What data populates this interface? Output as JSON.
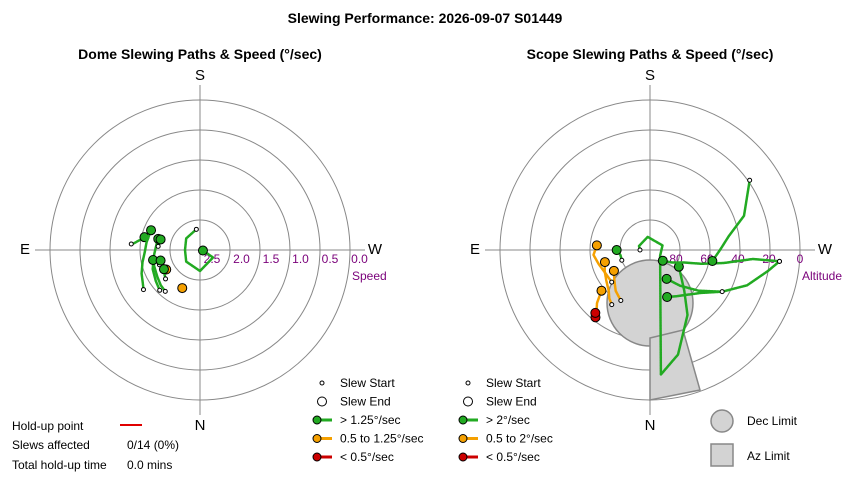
{
  "title": "Slewing Performance: 2026-09-07 S01449",
  "colors": {
    "fast": "#22aa22",
    "medium": "#f5a000",
    "slow": "#cc0000",
    "grid": "#888888",
    "limit_fill": "#d3d3d3",
    "limit_stroke": "#888888",
    "axis_label": "#7a007a"
  },
  "chart_data": [
    {
      "type": "polar-path",
      "title": "Dome Slewing Paths & Speed (°/sec)",
      "compass": [
        "S",
        "W",
        "N",
        "E"
      ],
      "radial_axis": {
        "name": "Speed",
        "ticks": [
          "2.5",
          "2.0",
          "1.5",
          "1.0",
          "0.5",
          "0.0"
        ]
      },
      "legend": [
        "Slew Start",
        "Slew End",
        "> 1.25°/sec",
        "0.5 to 1.25°/sec",
        "< 0.5°/sec"
      ],
      "slews": [
        {
          "speed": "medium",
          "path": [
            [
              25,
              1.8
            ],
            [
              25,
              1.8
            ]
          ]
        },
        {
          "speed": "medium",
          "path": [
            [
              60,
              1.85
            ],
            [
              60,
              1.85
            ]
          ]
        },
        {
          "speed": "fast",
          "path": [
            [
              95,
              1.35
            ],
            [
              96,
              1.4
            ],
            [
              98,
              1.45
            ],
            [
              100,
              1.5
            ],
            [
              103,
              1.55
            ]
          ]
        },
        {
          "speed": "fast",
          "path": [
            [
              55,
              1.35
            ],
            [
              60,
              1.4
            ],
            [
              68,
              1.45
            ],
            [
              78,
              1.52
            ],
            [
              88,
              1.58
            ],
            [
              98,
              1.6
            ],
            [
              112,
              1.62
            ]
          ]
        },
        {
          "speed": "fast",
          "path": [
            [
              45,
              1.55
            ],
            [
              55,
              1.6
            ],
            [
              68,
              1.65
            ],
            [
              82,
              1.72
            ],
            [
              98,
              1.77
            ],
            [
              105,
              1.78
            ]
          ]
        },
        {
          "speed": "fast",
          "path": [
            [
              40,
              1.6
            ],
            [
              48,
              1.62
            ],
            [
              58,
              1.66
            ],
            [
              70,
              1.69
            ],
            [
              78,
              1.7
            ]
          ]
        },
        {
          "speed": "fast",
          "path": [
            [
              50,
              1.75
            ],
            [
              55,
              1.78
            ],
            [
              62,
              1.82
            ]
          ]
        },
        {
          "speed": "fast",
          "path": [
            [
              70,
              1.78
            ],
            [
              72,
              1.8
            ],
            [
              75,
              1.82
            ]
          ]
        },
        {
          "speed": "fast",
          "path": [
            [
              95,
              1.8
            ],
            [
              98,
              1.81
            ],
            [
              105,
              1.82
            ]
          ]
        },
        {
          "speed": "fast",
          "path": [
            [
              170,
              2.15
            ],
            [
              130,
              2.2
            ],
            [
              90,
              2.25
            ],
            [
              50,
              2.2
            ],
            [
              0,
              2.15
            ],
            [
              300,
              2.25
            ],
            [
              280,
              2.45
            ]
          ]
        }
      ]
    },
    {
      "type": "polar-path",
      "title": "Scope Slewing Paths & Speed (°/sec)",
      "compass": [
        "S",
        "W",
        "N",
        "E"
      ],
      "radial_axis": {
        "name": "Altitude",
        "ticks": [
          "80",
          "60",
          "40",
          "20",
          "0"
        ]
      },
      "legend": [
        "Slew Start",
        "Slew End",
        "> 2°/sec",
        "0.5 to 2°/sec",
        "< 0.5°/sec"
      ],
      "limits": [
        "Dec Limit",
        "Az Limit"
      ],
      "slews": [
        {
          "speed": "fast",
          "path": [
            [
              90,
              84
            ],
            [
              110,
              83
            ],
            [
              170,
              82
            ],
            [
              250,
              82
            ],
            [
              300,
              83
            ],
            [
              355,
              15
            ],
            [
              345,
              25
            ],
            [
              330,
              45
            ],
            [
              320,
              58
            ],
            [
              300,
              70
            ]
          ]
        },
        {
          "speed": "fast",
          "path": [
            [
              275,
              12
            ],
            [
              280,
              18
            ],
            [
              290,
              28
            ],
            [
              300,
              40
            ],
            [
              310,
              52
            ],
            [
              320,
              62
            ],
            [
              330,
              70
            ]
          ]
        },
        {
          "speed": "fast",
          "path": [
            [
              275,
              12
            ],
            [
              275,
              28
            ],
            [
              280,
              45
            ],
            [
              285,
              58
            ],
            [
              290,
              68
            ],
            [
              300,
              75
            ],
            [
              310,
              80
            ]
          ]
        },
        {
          "speed": "fast",
          "path": [
            [
              300,
              40
            ],
            [
              310,
              50
            ],
            [
              320,
              55
            ],
            [
              330,
              58
            ],
            [
              340,
              60
            ]
          ]
        },
        {
          "speed": "fast",
          "path": [
            [
              235,
              17
            ],
            [
              250,
              30
            ],
            [
              260,
              42
            ],
            [
              270,
              48
            ],
            [
              280,
              52
            ]
          ]
        },
        {
          "speed": "medium",
          "path": [
            [
              35,
              50
            ],
            [
              40,
              52
            ],
            [
              45,
              55
            ],
            [
              55,
              58
            ],
            [
              65,
              60
            ],
            [
              75,
              62
            ]
          ]
        },
        {
          "speed": "medium",
          "path": [
            [
              30,
              55
            ],
            [
              40,
              58
            ],
            [
              50,
              62
            ],
            [
              60,
              65
            ]
          ]
        },
        {
          "speed": "medium",
          "path": [
            [
              50,
              60
            ],
            [
              60,
              60
            ],
            [
              75,
              58
            ],
            [
              85,
              56
            ],
            [
              95,
              58
            ]
          ]
        },
        {
          "speed": "medium",
          "path": [
            [
              40,
              40
            ],
            [
              45,
              45
            ],
            [
              50,
              52
            ]
          ]
        },
        {
          "speed": "slow",
          "path": [
            [
              38,
              38
            ],
            [
              39,
              38
            ]
          ]
        },
        {
          "speed": "slow",
          "path": [
            [
              40,
              40
            ],
            [
              41,
              40
            ]
          ]
        },
        {
          "speed": "fast",
          "path": [
            [
              70,
              72
            ],
            [
              80,
              72
            ],
            [
              90,
              70
            ]
          ]
        }
      ]
    }
  ],
  "holdup": {
    "point_label": "Hold-up point",
    "affected_label": "Slews affected",
    "affected_value": "0/14 (0%)",
    "total_label": "Total hold-up time",
    "total_value": "0.0 mins"
  }
}
